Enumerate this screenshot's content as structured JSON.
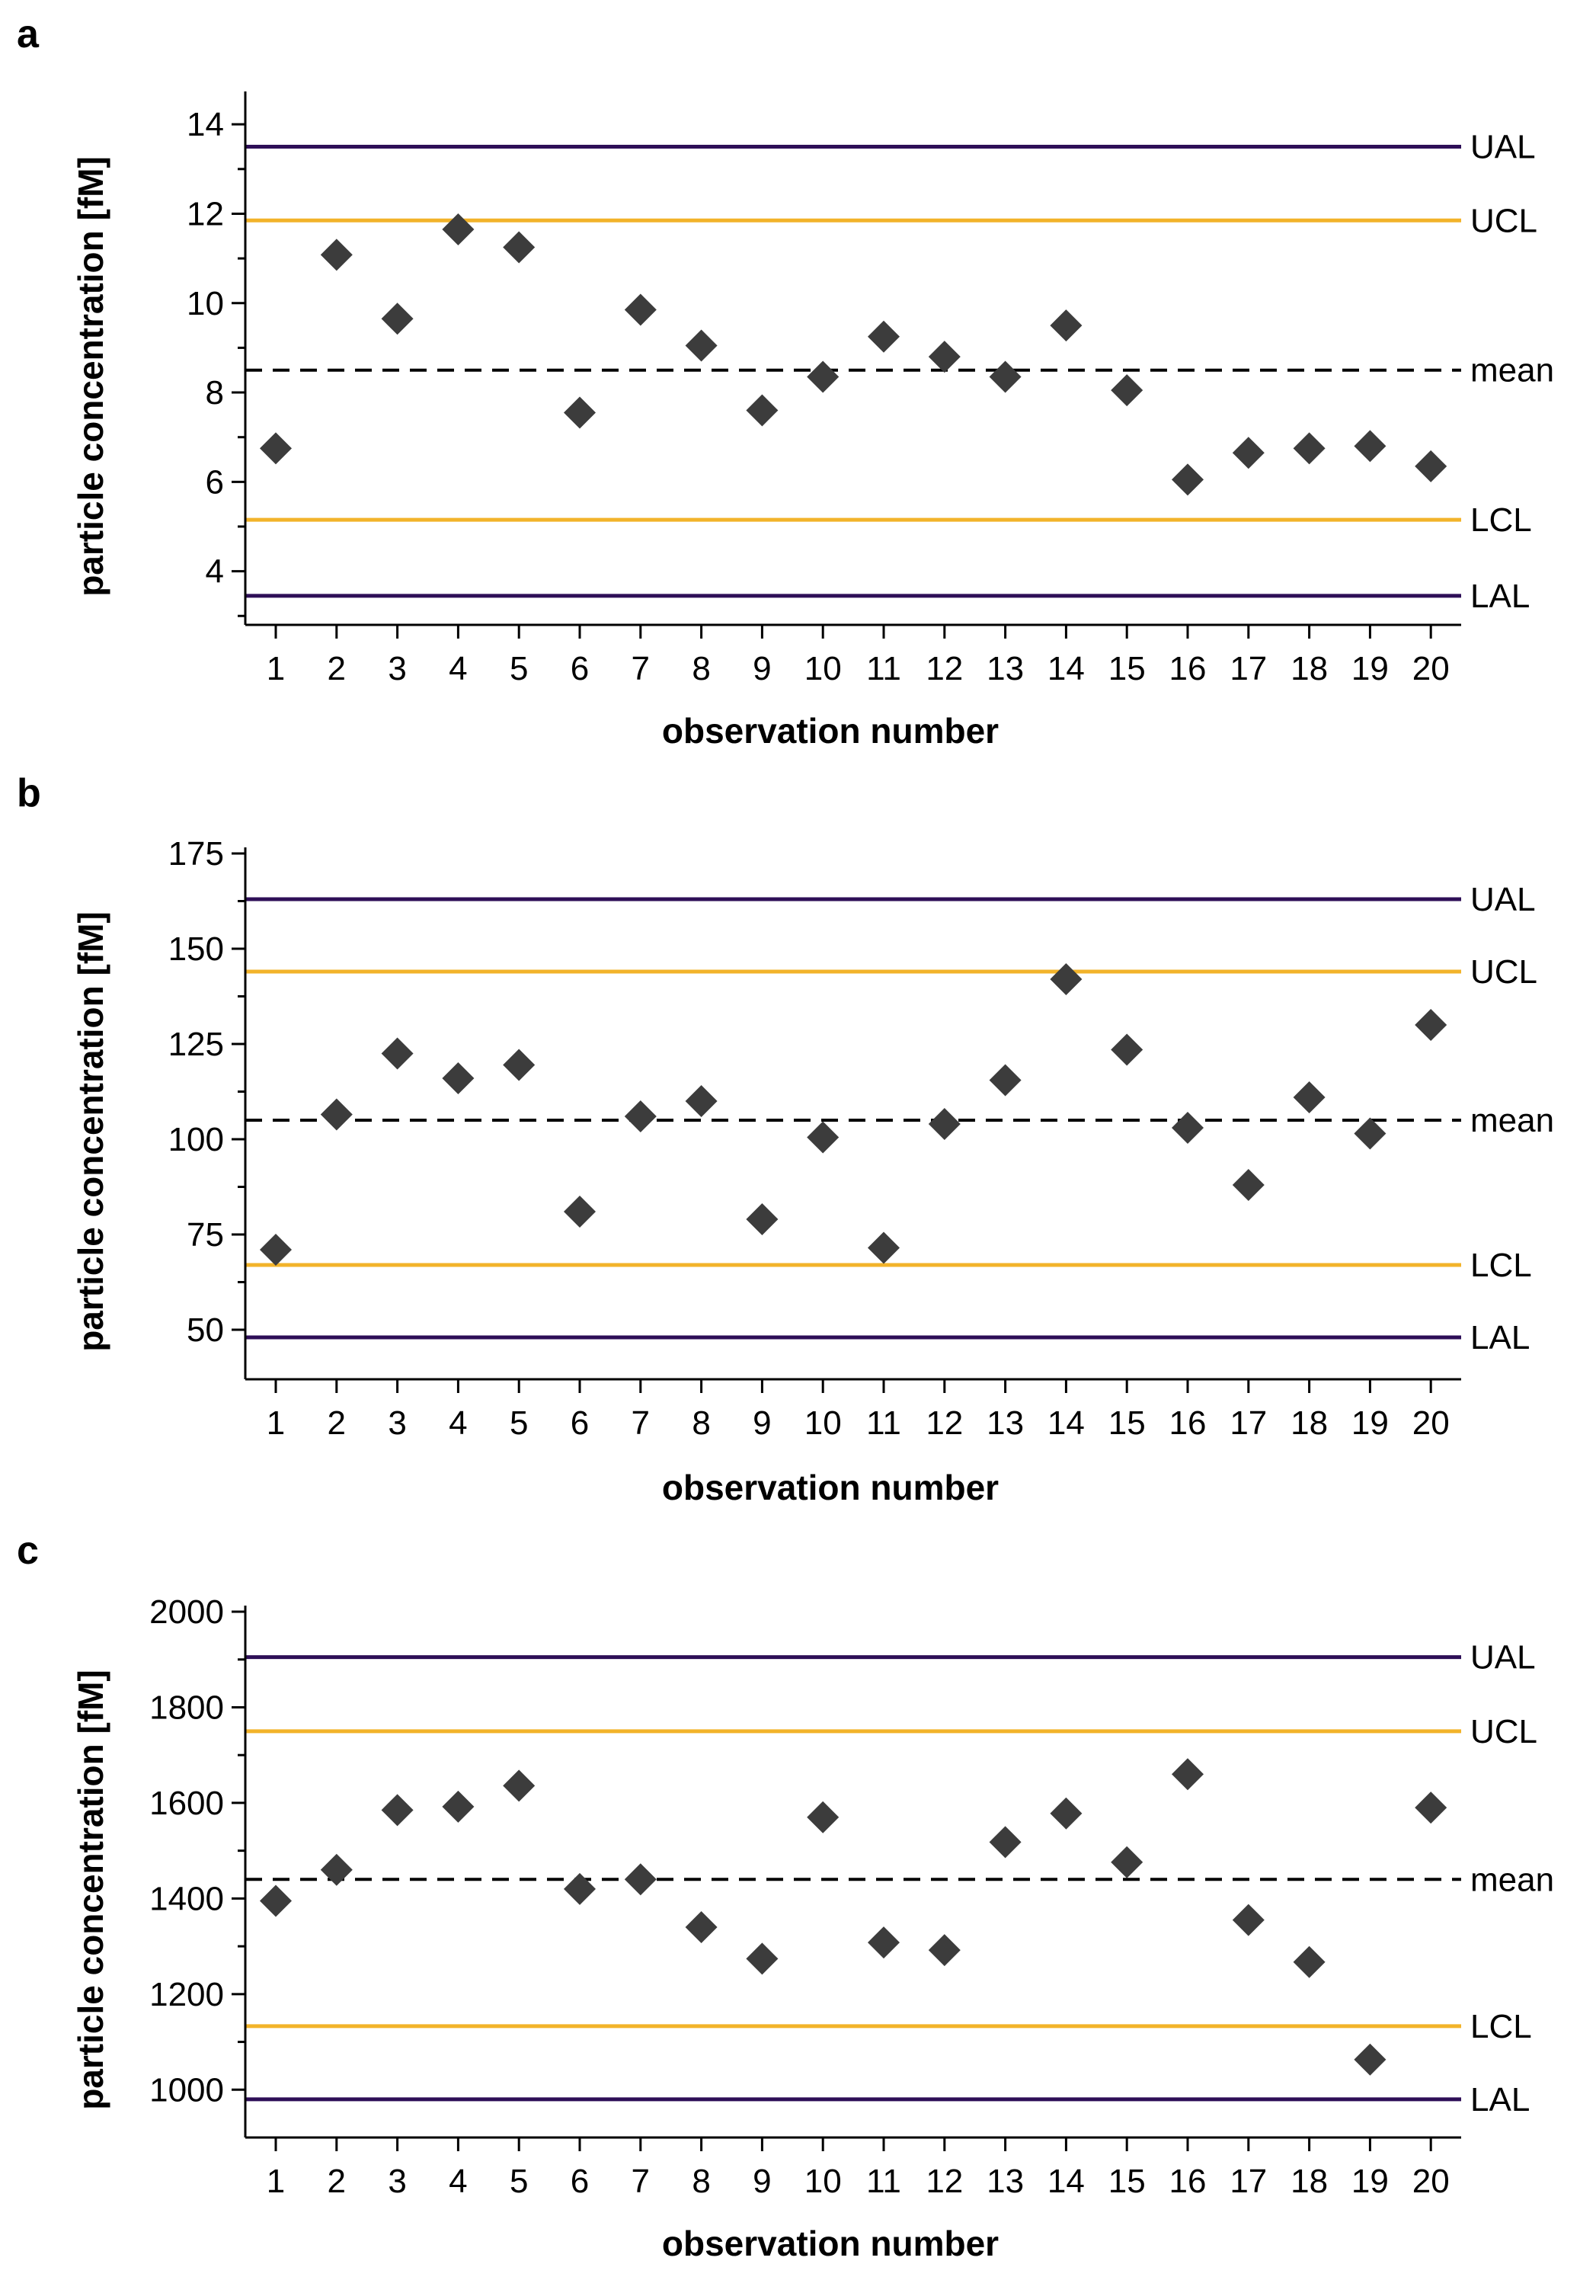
{
  "colors": {
    "action_limit": "#2e0f57",
    "control_limit": "#f2b32a",
    "mean": "#000000",
    "marker": "#3c3c3c"
  },
  "chart_data": [
    {
      "type": "scatter",
      "panel": "a",
      "xlabel": "observation number",
      "ylabel": "particle concentration [fM]",
      "x": [
        1,
        2,
        3,
        4,
        5,
        6,
        7,
        8,
        9,
        10,
        11,
        12,
        13,
        14,
        15,
        16,
        17,
        18,
        19,
        20
      ],
      "values": [
        6.75,
        11.08,
        9.65,
        11.65,
        11.25,
        7.55,
        9.85,
        9.05,
        7.6,
        8.35,
        9.25,
        8.8,
        8.35,
        9.5,
        8.05,
        6.05,
        6.65,
        6.75,
        6.8,
        6.35
      ],
      "ylim": [
        2.8,
        14.6
      ],
      "yticks": [
        4,
        6,
        8,
        10,
        12,
        14
      ],
      "yminor": [
        3,
        5,
        7,
        9,
        11,
        13
      ],
      "reference_lines": [
        {
          "label": "UAL",
          "value": 13.5,
          "style": "action"
        },
        {
          "label": "UCL",
          "value": 11.85,
          "style": "control"
        },
        {
          "label": "mean",
          "value": 8.5,
          "style": "mean"
        },
        {
          "label": "LCL",
          "value": 5.15,
          "style": "control"
        },
        {
          "label": "LAL",
          "value": 3.45,
          "style": "action"
        }
      ]
    },
    {
      "type": "scatter",
      "panel": "b",
      "xlabel": "observation number",
      "ylabel": "particle concentration [fM]",
      "x": [
        1,
        2,
        3,
        4,
        5,
        6,
        7,
        8,
        9,
        10,
        11,
        12,
        13,
        14,
        15,
        16,
        17,
        18,
        19,
        20
      ],
      "values": [
        71,
        106.5,
        122.5,
        116,
        119.5,
        81,
        106,
        110,
        79,
        100.5,
        71.5,
        104,
        115.5,
        142,
        123.5,
        103,
        88,
        111,
        101.5,
        130
      ],
      "ylim": [
        37,
        175
      ],
      "yticks": [
        50,
        75,
        100,
        125,
        150,
        175
      ],
      "yminor": [
        62.5,
        87.5,
        112.5,
        137.5,
        162.5
      ],
      "reference_lines": [
        {
          "label": "UAL",
          "value": 163,
          "style": "action"
        },
        {
          "label": "UCL",
          "value": 144,
          "style": "control"
        },
        {
          "label": "mean",
          "value": 105,
          "style": "mean"
        },
        {
          "label": "LCL",
          "value": 67,
          "style": "control"
        },
        {
          "label": "LAL",
          "value": 48,
          "style": "action"
        }
      ]
    },
    {
      "type": "scatter",
      "panel": "c",
      "xlabel": "observation number",
      "ylabel": "particle concentration [fM]",
      "x": [
        1,
        2,
        3,
        4,
        5,
        6,
        7,
        8,
        9,
        10,
        11,
        12,
        13,
        14,
        15,
        16,
        17,
        18,
        19,
        20
      ],
      "values": [
        1395,
        1460,
        1585,
        1592,
        1636,
        1420,
        1440,
        1340,
        1274,
        1570,
        1308,
        1292,
        1518,
        1578,
        1476,
        1660,
        1355,
        1267,
        1063,
        1590
      ],
      "ylim": [
        900,
        2000
      ],
      "yticks": [
        1000,
        1200,
        1400,
        1600,
        1800,
        2000
      ],
      "yminor": [
        1100,
        1300,
        1500,
        1700,
        1900
      ],
      "reference_lines": [
        {
          "label": "UAL",
          "value": 1905,
          "style": "action"
        },
        {
          "label": "UCL",
          "value": 1750,
          "style": "control"
        },
        {
          "label": "mean",
          "value": 1440,
          "style": "mean"
        },
        {
          "label": "LCL",
          "value": 1133,
          "style": "control"
        },
        {
          "label": "LAL",
          "value": 980,
          "style": "action"
        }
      ]
    }
  ]
}
